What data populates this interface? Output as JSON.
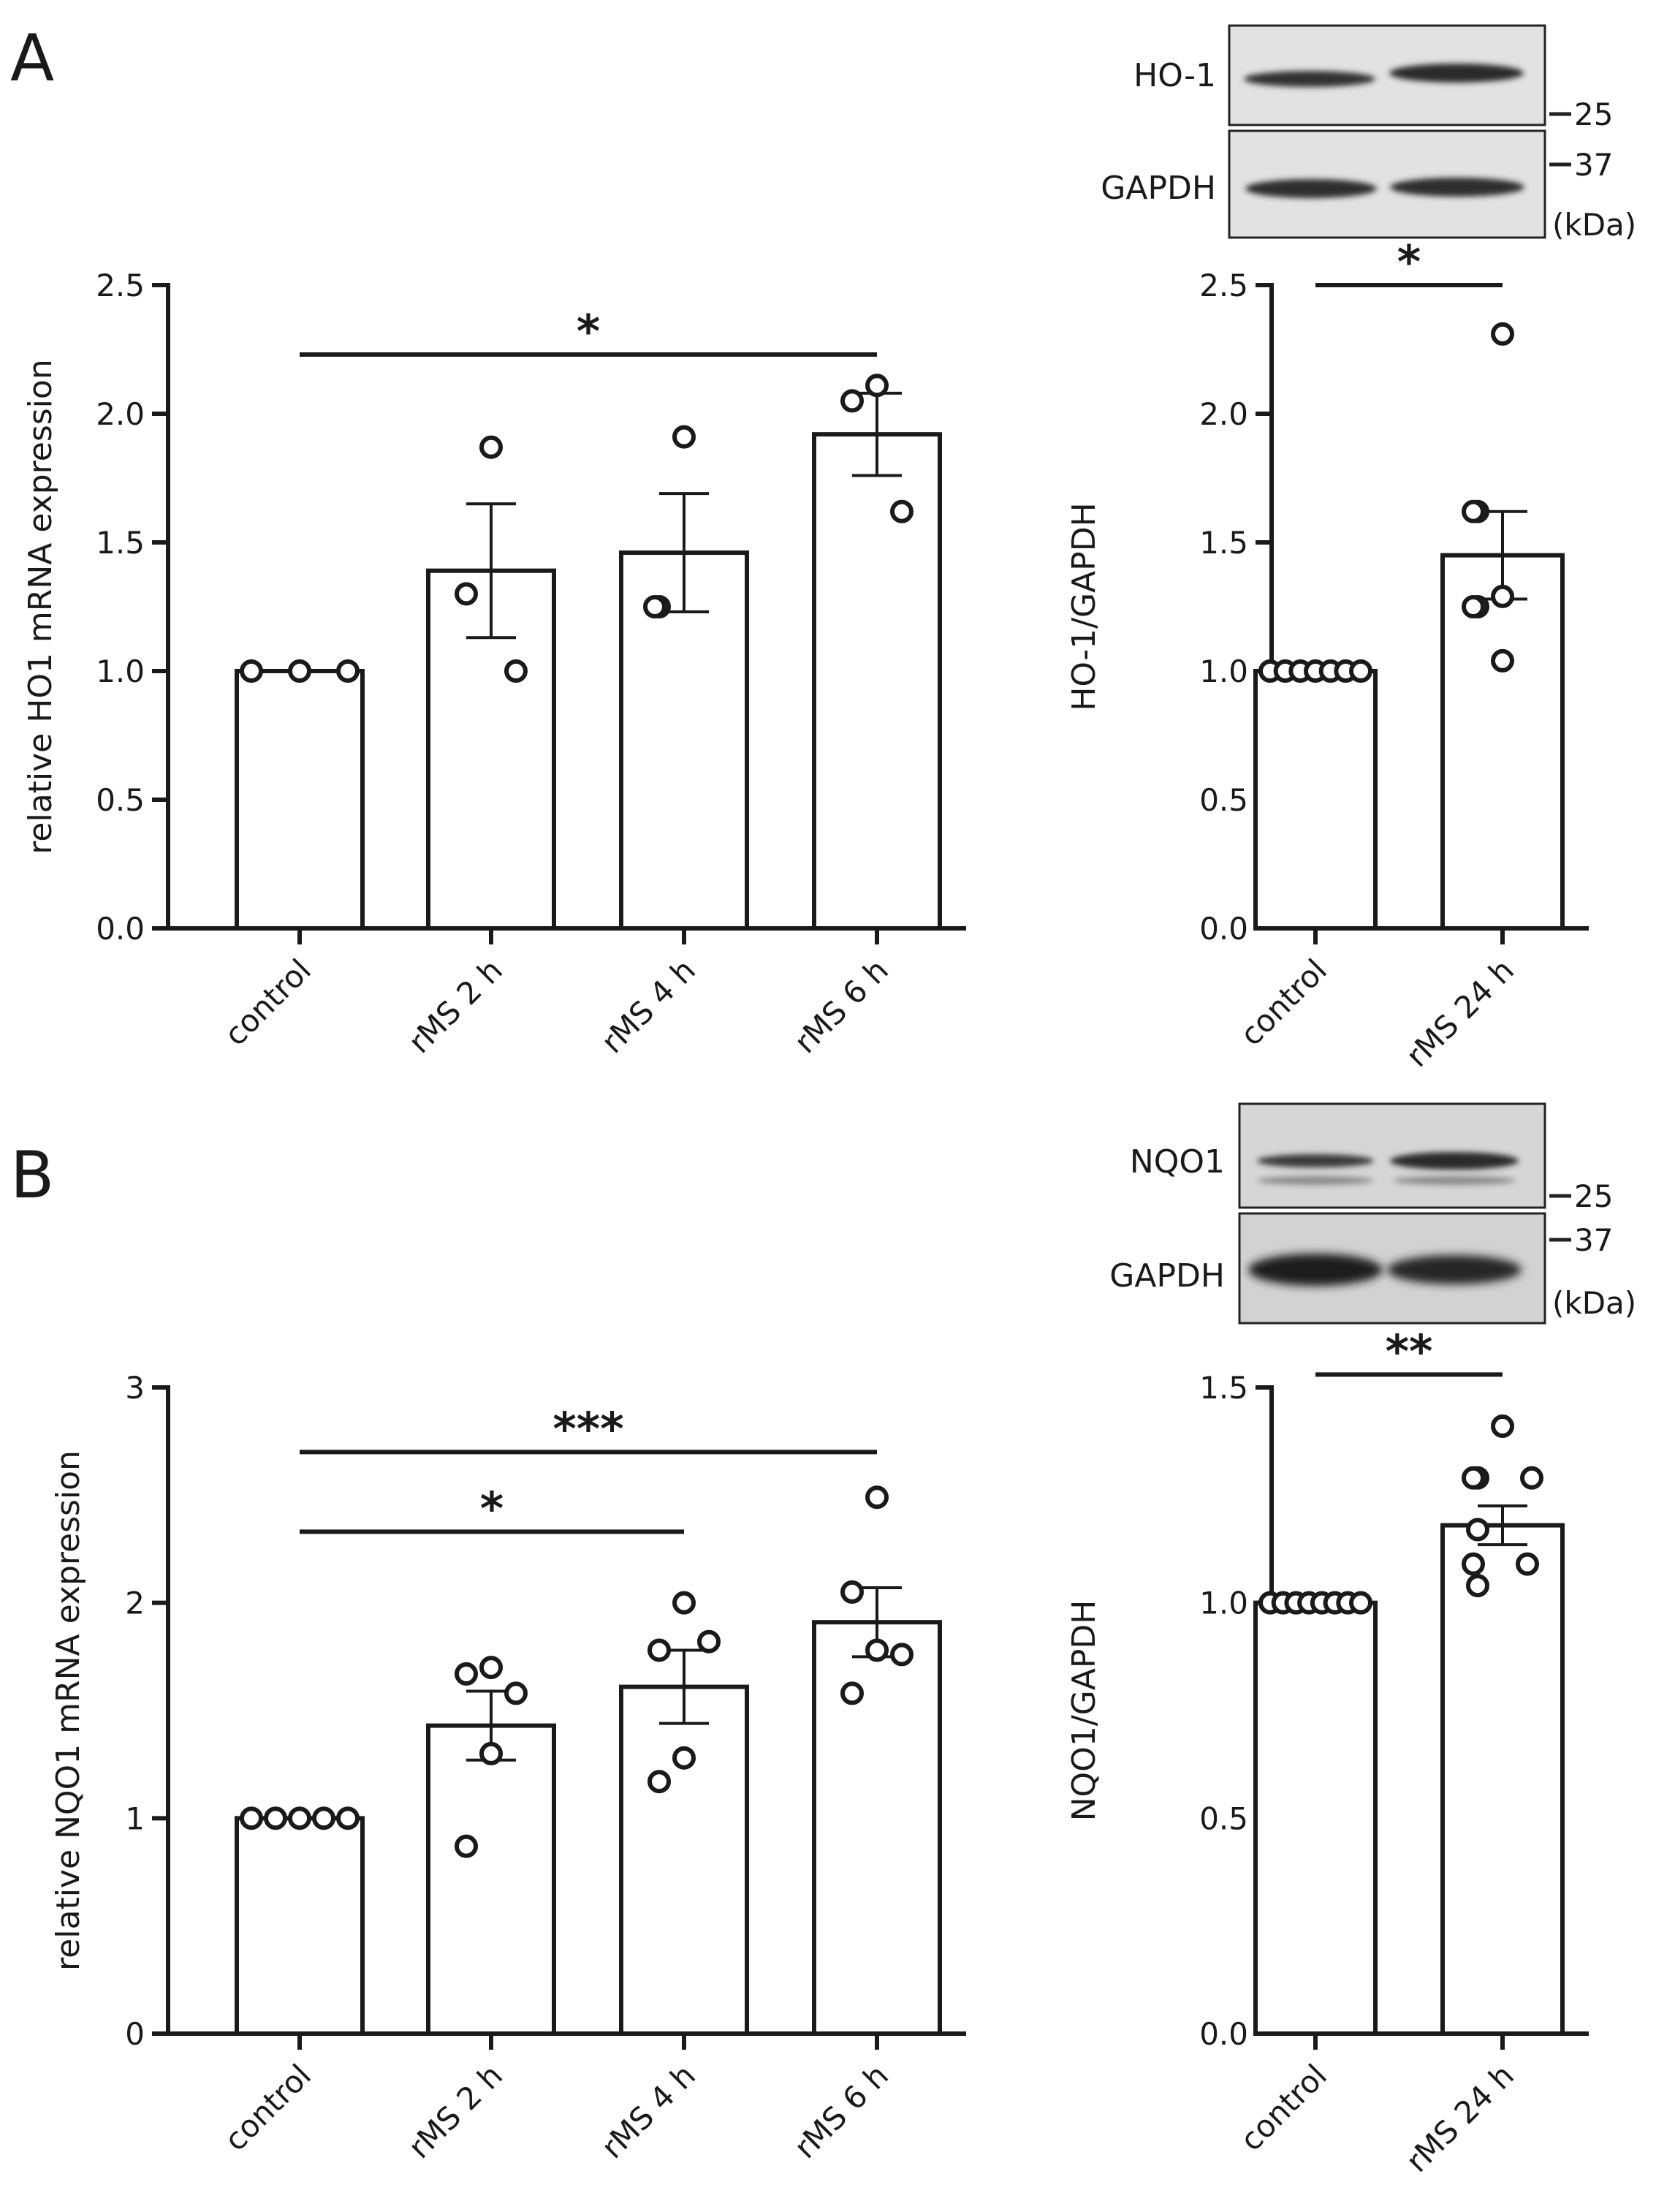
{
  "panels": [
    {
      "label": "A"
    },
    {
      "label": "B"
    }
  ],
  "blots": [
    {
      "bands": [
        {
          "label": "HO-1",
          "style": "thin"
        },
        {
          "label": "GAPDH",
          "style": "thin"
        }
      ],
      "markers": [
        "25",
        "37",
        "(kDa)"
      ]
    },
    {
      "bands": [
        {
          "label": "NQO1",
          "style": "nqo1"
        },
        {
          "label": "GAPDH",
          "style": "thick"
        }
      ],
      "markers": [
        "25",
        "37",
        "(kDa)"
      ]
    }
  ],
  "chart_data": [
    {
      "id": "A-left",
      "type": "bar",
      "ylabel": "relative HO1 mRNA expression",
      "ylim": [
        0,
        2.5
      ],
      "yticks": [
        "0.0",
        "0.5",
        "1.0",
        "1.5",
        "2.0",
        "2.5"
      ],
      "categories": [
        "control",
        "rMS 2 h",
        "rMS 4 h",
        "rMS 6 h"
      ],
      "values": [
        1.0,
        1.39,
        1.46,
        1.92
      ],
      "sem": [
        0,
        0.26,
        0.23,
        0.16
      ],
      "points": [
        [
          1.0,
          1.0,
          1.0
        ],
        [
          1.87,
          1.3,
          1.0
        ],
        [
          1.91,
          1.25,
          1.25
        ],
        [
          2.11,
          2.05,
          1.62
        ]
      ],
      "significance": [
        {
          "from": 0,
          "to": 3,
          "label": "*",
          "y": 2.23
        }
      ]
    },
    {
      "id": "A-right",
      "type": "bar",
      "ylabel": "HO-1/GAPDH",
      "ylim": [
        0,
        2.5
      ],
      "yticks": [
        "0.0",
        "0.5",
        "1.0",
        "1.5",
        "2.0",
        "2.5"
      ],
      "categories": [
        "control",
        "rMS 24 h"
      ],
      "values": [
        1.0,
        1.45
      ],
      "sem": [
        0,
        0.17
      ],
      "points": [
        [
          1.0,
          1.0,
          1.0,
          1.0,
          1.0,
          1.0,
          1.0
        ],
        [
          2.31,
          1.62,
          1.62,
          1.29,
          1.25,
          1.25,
          1.04
        ]
      ],
      "significance": [
        {
          "from": 0,
          "to": 1,
          "label": "*",
          "y": 2.5
        }
      ]
    },
    {
      "id": "B-left",
      "type": "bar",
      "ylabel": "relative NQO1 mRNA expression",
      "ylim": [
        0,
        3
      ],
      "yticks": [
        "0",
        "1",
        "2",
        "3"
      ],
      "categories": [
        "control",
        "rMS 2 h",
        "rMS 4 h",
        "rMS 6 h"
      ],
      "values": [
        1.0,
        1.43,
        1.61,
        1.91
      ],
      "sem": [
        0,
        0.16,
        0.17,
        0.16
      ],
      "points": [
        [
          1.0,
          1.0,
          1.0,
          1.0,
          1.0
        ],
        [
          1.7,
          1.67,
          1.58,
          1.3,
          0.87
        ],
        [
          2.0,
          1.78,
          1.82,
          1.28,
          1.17
        ],
        [
          2.49,
          2.05,
          1.76,
          1.78,
          1.58
        ]
      ],
      "significance": [
        {
          "from": 0,
          "to": 3,
          "label": "***",
          "y": 2.7
        },
        {
          "from": 0,
          "to": 2,
          "label": "*",
          "y": 2.33
        }
      ]
    },
    {
      "id": "B-right",
      "type": "bar",
      "ylabel": "NQO1/GAPDH",
      "ylim": [
        0,
        1.5
      ],
      "yticks": [
        "0.0",
        "0.5",
        "1.0",
        "1.5"
      ],
      "categories": [
        "control",
        "rMS 24 h"
      ],
      "values": [
        1.0,
        1.18
      ],
      "sem": [
        0,
        0.045
      ],
      "points": [
        [
          1.0,
          1.0,
          1.0,
          1.0,
          1.0,
          1.0,
          1.0,
          1.0
        ],
        [
          1.41,
          1.29,
          1.29,
          1.29,
          1.17,
          1.09,
          1.09,
          1.04
        ]
      ],
      "significance": [
        {
          "from": 0,
          "to": 1,
          "label": "**",
          "y": 1.53
        }
      ]
    }
  ]
}
